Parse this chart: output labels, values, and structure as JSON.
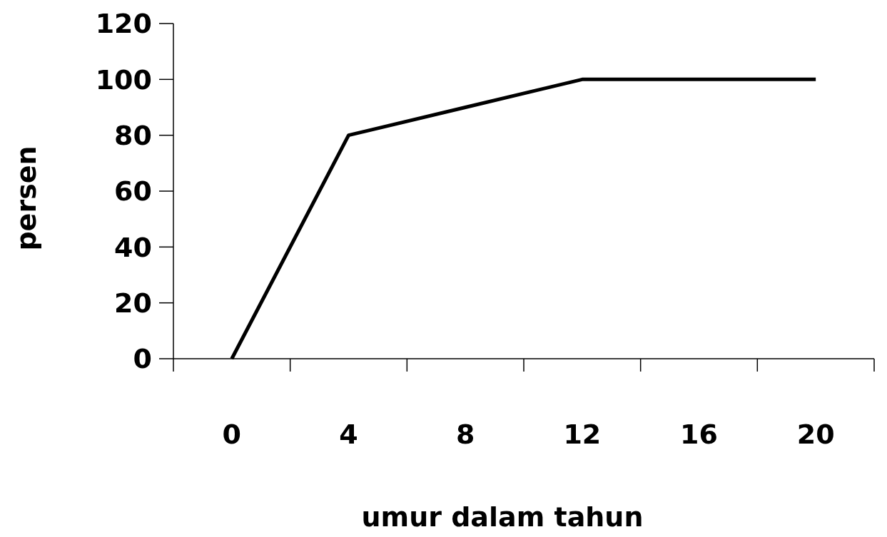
{
  "chart_data": {
    "type": "line",
    "xlabel": "umur dalam tahun",
    "ylabel": "persen",
    "categories": [
      "0",
      "4",
      "8",
      "12",
      "16",
      "20"
    ],
    "series": [
      {
        "color": "#000000",
        "values": [
          0,
          80,
          90,
          100,
          100,
          100
        ]
      }
    ],
    "ylim": [
      0,
      120
    ],
    "yticks": [
      0,
      20,
      40,
      60,
      80,
      100,
      120
    ],
    "grid": false,
    "marker": "none",
    "line_style": "solid"
  }
}
